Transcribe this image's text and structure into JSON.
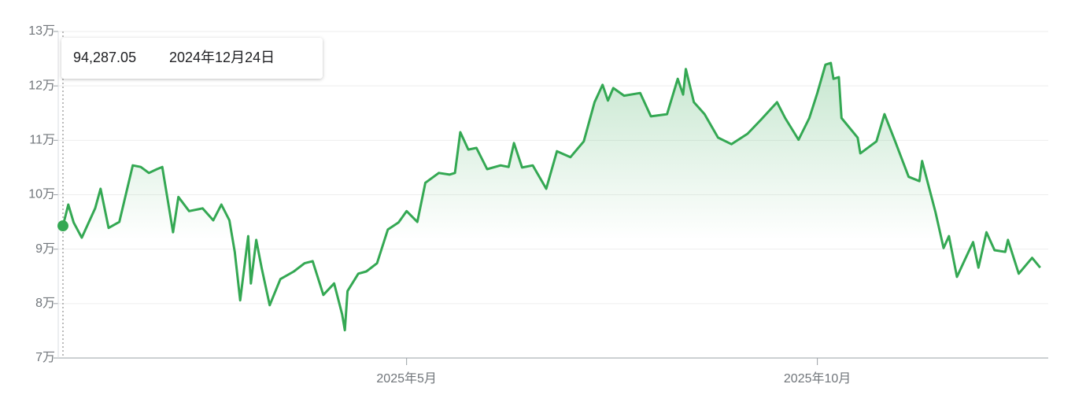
{
  "chart_data": {
    "type": "line",
    "color": "#34a853",
    "grid": true,
    "tooltip": {
      "value": 94287.05,
      "label": "94,287.05",
      "date": "2024年12月24日"
    },
    "xlim": [
      "2024-12-24",
      "2025-12-26"
    ],
    "xticks": [
      {
        "value": "2025-05-01",
        "label": "2025年5月"
      },
      {
        "value": "2025-10-01",
        "label": "2025年10月"
      }
    ],
    "ylim": [
      70000,
      130000
    ],
    "yticks": [
      {
        "value": 70000,
        "label": "7万"
      },
      {
        "value": 80000,
        "label": "8万"
      },
      {
        "value": 90000,
        "label": "9万"
      },
      {
        "value": 100000,
        "label": "10万"
      },
      {
        "value": 110000,
        "label": "11万"
      },
      {
        "value": 120000,
        "label": "12万"
      },
      {
        "value": 130000,
        "label": "13万"
      }
    ],
    "x": [
      "2024-12-24",
      "2024-12-26",
      "2024-12-28",
      "2024-12-31",
      "2025-01-05",
      "2025-01-07",
      "2025-01-10",
      "2025-01-14",
      "2025-01-19",
      "2025-01-22",
      "2025-01-25",
      "2025-01-28",
      "2025-01-30",
      "2025-02-03",
      "2025-02-05",
      "2025-02-09",
      "2025-02-14",
      "2025-02-18",
      "2025-02-21",
      "2025-02-24",
      "2025-02-26",
      "2025-02-28",
      "2025-03-03",
      "2025-03-04",
      "2025-03-06",
      "2025-03-08",
      "2025-03-11",
      "2025-03-15",
      "2025-03-20",
      "2025-03-24",
      "2025-03-27",
      "2025-03-31",
      "2025-04-04",
      "2025-04-07",
      "2025-04-08",
      "2025-04-09",
      "2025-04-13",
      "2025-04-16",
      "2025-04-20",
      "2025-04-24",
      "2025-04-28",
      "2025-05-01",
      "2025-05-05",
      "2025-05-08",
      "2025-05-13",
      "2025-05-17",
      "2025-05-19",
      "2025-05-21",
      "2025-05-24",
      "2025-05-27",
      "2025-05-31",
      "2025-06-05",
      "2025-06-08",
      "2025-06-10",
      "2025-06-13",
      "2025-06-17",
      "2025-06-22",
      "2025-06-26",
      "2025-07-01",
      "2025-07-06",
      "2025-07-10",
      "2025-07-13",
      "2025-07-15",
      "2025-07-17",
      "2025-07-21",
      "2025-07-27",
      "2025-07-31",
      "2025-08-06",
      "2025-08-10",
      "2025-08-12",
      "2025-08-13",
      "2025-08-16",
      "2025-08-20",
      "2025-08-25",
      "2025-08-30",
      "2025-09-05",
      "2025-09-10",
      "2025-09-16",
      "2025-09-19",
      "2025-09-24",
      "2025-09-28",
      "2025-10-01",
      "2025-10-04",
      "2025-10-06",
      "2025-10-07",
      "2025-10-09",
      "2025-10-10",
      "2025-10-16",
      "2025-10-17",
      "2025-10-23",
      "2025-10-26",
      "2025-10-30",
      "2025-11-04",
      "2025-11-08",
      "2025-11-09",
      "2025-11-14",
      "2025-11-17",
      "2025-11-19",
      "2025-11-22",
      "2025-11-25",
      "2025-11-28",
      "2025-11-30",
      "2025-12-03",
      "2025-12-06",
      "2025-12-10",
      "2025-12-11",
      "2025-12-15",
      "2025-12-20",
      "2025-12-23"
    ],
    "series": [
      {
        "values": [
          94287.05,
          98200,
          94900,
          92100,
          97500,
          101100,
          93900,
          95000,
          105400,
          105100,
          104000,
          104700,
          105100,
          93100,
          99600,
          97000,
          97500,
          95300,
          98200,
          95300,
          89500,
          80600,
          92400,
          83700,
          91700,
          86600,
          79700,
          84500,
          85900,
          87400,
          87800,
          81600,
          83700,
          78000,
          75100,
          82300,
          85500,
          85900,
          87400,
          93600,
          94900,
          97000,
          95000,
          102200,
          104000,
          103700,
          104000,
          111500,
          108300,
          108600,
          104700,
          105400,
          105100,
          109500,
          105000,
          105400,
          101100,
          108000,
          106900,
          109800,
          117000,
          120200,
          117300,
          119600,
          118200,
          118700,
          114400,
          114800,
          121300,
          118400,
          123100,
          117000,
          114800,
          110500,
          109300,
          111200,
          113800,
          117000,
          114100,
          110100,
          114100,
          118700,
          123900,
          124200,
          121300,
          121600,
          114100,
          110500,
          107600,
          109800,
          114800,
          109800,
          103300,
          102500,
          106200,
          96800,
          90200,
          92400,
          84900,
          88100,
          91300,
          86600,
          93100,
          89800,
          89500,
          91700,
          85500,
          88400,
          86600
        ]
      }
    ]
  }
}
